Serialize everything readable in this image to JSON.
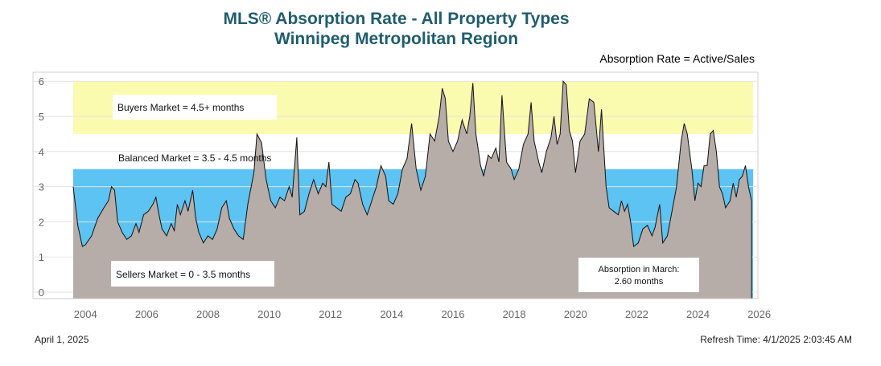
{
  "header": {
    "title_line1": "MLS® Absorption Rate - All Property Types",
    "title_line2": "Winnipeg Metropolitan Region",
    "formula": "Absorption Rate = Active/Sales"
  },
  "footer": {
    "date": "April 1, 2025",
    "refresh": "Refresh Time: 4/1/2025 2:03:45 AM"
  },
  "zones": {
    "buyers": "Buyers Market = 4.5+ months",
    "balanced": "Balanced Market = 3.5 - 4.5 months",
    "sellers": "Sellers Market = 0 - 3.5 months"
  },
  "annotation": {
    "line1": "Absorption in March:",
    "line2": "2.60 months"
  },
  "colors": {
    "title": "#1f5d6e",
    "buyers_band": "#fbfbb0",
    "sellers_band": "#5cc3f2",
    "area_fill": "#b6ada8",
    "area_stroke": "#111111"
  },
  "chart_data": {
    "type": "area",
    "title": "MLS® Absorption Rate - All Property Types",
    "xlabel": "",
    "ylabel": "",
    "xlim": [
      2003.6,
      2026.2
    ],
    "ylim": [
      0,
      6
    ],
    "x_ticks": [
      2004,
      2006,
      2008,
      2010,
      2012,
      2014,
      2016,
      2018,
      2020,
      2022,
      2024,
      2026
    ],
    "y_ticks": [
      0,
      1,
      2,
      3,
      4,
      5,
      6
    ],
    "grid": true,
    "bands": [
      {
        "name": "Sellers Market",
        "from": 0,
        "to": 3.5
      },
      {
        "name": "Balanced Market",
        "from": 3.5,
        "to": 4.5
      },
      {
        "name": "Buyers Market",
        "from": 4.5,
        "to": 6
      }
    ],
    "series": [
      {
        "name": "Absorption Rate",
        "points": [
          [
            2003.6,
            3.0
          ],
          [
            2003.75,
            1.9
          ],
          [
            2003.9,
            1.3
          ],
          [
            2004.0,
            1.35
          ],
          [
            2004.2,
            1.6
          ],
          [
            2004.4,
            2.1
          ],
          [
            2004.6,
            2.4
          ],
          [
            2004.75,
            2.6
          ],
          [
            2004.85,
            3.0
          ],
          [
            2004.95,
            2.9
          ],
          [
            2005.05,
            2.0
          ],
          [
            2005.2,
            1.7
          ],
          [
            2005.35,
            1.5
          ],
          [
            2005.5,
            1.6
          ],
          [
            2005.65,
            1.95
          ],
          [
            2005.75,
            1.7
          ],
          [
            2005.9,
            2.2
          ],
          [
            2006.05,
            2.3
          ],
          [
            2006.2,
            2.5
          ],
          [
            2006.3,
            2.7
          ],
          [
            2006.4,
            2.2
          ],
          [
            2006.5,
            1.8
          ],
          [
            2006.65,
            1.6
          ],
          [
            2006.8,
            1.95
          ],
          [
            2006.9,
            1.75
          ],
          [
            2007.0,
            2.5
          ],
          [
            2007.1,
            2.2
          ],
          [
            2007.25,
            2.6
          ],
          [
            2007.35,
            2.3
          ],
          [
            2007.5,
            2.9
          ],
          [
            2007.6,
            2.1
          ],
          [
            2007.7,
            1.7
          ],
          [
            2007.85,
            1.4
          ],
          [
            2008.0,
            1.6
          ],
          [
            2008.15,
            1.5
          ],
          [
            2008.3,
            1.8
          ],
          [
            2008.45,
            2.4
          ],
          [
            2008.6,
            2.6
          ],
          [
            2008.7,
            2.1
          ],
          [
            2008.85,
            1.8
          ],
          [
            2009.0,
            1.6
          ],
          [
            2009.15,
            1.5
          ],
          [
            2009.3,
            2.5
          ],
          [
            2009.5,
            3.4
          ],
          [
            2009.6,
            4.5
          ],
          [
            2009.75,
            4.25
          ],
          [
            2009.9,
            3.2
          ],
          [
            2010.05,
            2.6
          ],
          [
            2010.2,
            2.4
          ],
          [
            2010.35,
            2.7
          ],
          [
            2010.5,
            2.6
          ],
          [
            2010.65,
            3.0
          ],
          [
            2010.75,
            2.7
          ],
          [
            2010.9,
            4.4
          ],
          [
            2011.0,
            2.2
          ],
          [
            2011.15,
            2.3
          ],
          [
            2011.3,
            2.8
          ],
          [
            2011.45,
            3.2
          ],
          [
            2011.6,
            2.8
          ],
          [
            2011.75,
            3.1
          ],
          [
            2011.85,
            3.0
          ],
          [
            2011.95,
            3.7
          ],
          [
            2012.05,
            2.5
          ],
          [
            2012.2,
            2.4
          ],
          [
            2012.35,
            2.3
          ],
          [
            2012.5,
            2.7
          ],
          [
            2012.65,
            2.8
          ],
          [
            2012.8,
            3.2
          ],
          [
            2012.9,
            3.1
          ],
          [
            2013.05,
            2.5
          ],
          [
            2013.2,
            2.2
          ],
          [
            2013.35,
            2.6
          ],
          [
            2013.5,
            3.0
          ],
          [
            2013.65,
            3.6
          ],
          [
            2013.8,
            3.3
          ],
          [
            2013.9,
            2.6
          ],
          [
            2014.05,
            2.5
          ],
          [
            2014.2,
            2.8
          ],
          [
            2014.35,
            3.5
          ],
          [
            2014.5,
            3.8
          ],
          [
            2014.65,
            4.8
          ],
          [
            2014.8,
            3.5
          ],
          [
            2014.95,
            2.9
          ],
          [
            2015.1,
            3.3
          ],
          [
            2015.25,
            4.5
          ],
          [
            2015.4,
            4.3
          ],
          [
            2015.55,
            5.0
          ],
          [
            2015.65,
            5.8
          ],
          [
            2015.75,
            5.5
          ],
          [
            2015.85,
            4.3
          ],
          [
            2016.0,
            4.0
          ],
          [
            2016.15,
            4.3
          ],
          [
            2016.3,
            4.9
          ],
          [
            2016.45,
            4.5
          ],
          [
            2016.55,
            5.0
          ],
          [
            2016.65,
            5.95
          ],
          [
            2016.75,
            4.5
          ],
          [
            2016.9,
            3.6
          ],
          [
            2017.0,
            3.3
          ],
          [
            2017.15,
            3.9
          ],
          [
            2017.25,
            3.8
          ],
          [
            2017.4,
            4.1
          ],
          [
            2017.5,
            3.7
          ],
          [
            2017.6,
            5.6
          ],
          [
            2017.75,
            3.7
          ],
          [
            2017.9,
            3.5
          ],
          [
            2018.0,
            3.2
          ],
          [
            2018.15,
            3.5
          ],
          [
            2018.3,
            4.2
          ],
          [
            2018.45,
            4.5
          ],
          [
            2018.55,
            5.4
          ],
          [
            2018.65,
            4.3
          ],
          [
            2018.8,
            3.7
          ],
          [
            2018.9,
            3.4
          ],
          [
            2019.05,
            4.0
          ],
          [
            2019.2,
            4.4
          ],
          [
            2019.3,
            5.0
          ],
          [
            2019.4,
            4.2
          ],
          [
            2019.5,
            4.5
          ],
          [
            2019.6,
            6.0
          ],
          [
            2019.7,
            5.9
          ],
          [
            2019.8,
            4.6
          ],
          [
            2019.9,
            4.3
          ],
          [
            2020.0,
            3.4
          ],
          [
            2020.15,
            4.3
          ],
          [
            2020.3,
            4.5
          ],
          [
            2020.45,
            5.5
          ],
          [
            2020.6,
            5.4
          ],
          [
            2020.75,
            4.0
          ],
          [
            2020.85,
            5.2
          ],
          [
            2021.0,
            3.0
          ],
          [
            2021.1,
            2.4
          ],
          [
            2021.25,
            2.3
          ],
          [
            2021.4,
            2.2
          ],
          [
            2021.5,
            2.6
          ],
          [
            2021.6,
            2.3
          ],
          [
            2021.7,
            2.5
          ],
          [
            2021.8,
            2.0
          ],
          [
            2021.9,
            1.3
          ],
          [
            2022.05,
            1.4
          ],
          [
            2022.2,
            1.8
          ],
          [
            2022.35,
            1.9
          ],
          [
            2022.5,
            1.6
          ],
          [
            2022.6,
            1.85
          ],
          [
            2022.75,
            2.5
          ],
          [
            2022.85,
            1.4
          ],
          [
            2023.0,
            1.6
          ],
          [
            2023.15,
            2.3
          ],
          [
            2023.3,
            3.0
          ],
          [
            2023.45,
            4.3
          ],
          [
            2023.55,
            4.8
          ],
          [
            2023.65,
            4.5
          ],
          [
            2023.8,
            3.5
          ],
          [
            2023.9,
            2.6
          ],
          [
            2024.0,
            3.1
          ],
          [
            2024.1,
            3.0
          ],
          [
            2024.2,
            3.6
          ],
          [
            2024.3,
            3.6
          ],
          [
            2024.4,
            4.5
          ],
          [
            2024.5,
            4.6
          ],
          [
            2024.6,
            4.0
          ],
          [
            2024.7,
            3.0
          ],
          [
            2024.8,
            2.8
          ],
          [
            2024.9,
            2.4
          ],
          [
            2025.05,
            2.6
          ],
          [
            2025.15,
            3.1
          ],
          [
            2025.25,
            2.7
          ],
          [
            2025.35,
            3.2
          ],
          [
            2025.45,
            3.3
          ],
          [
            2025.55,
            3.6
          ],
          [
            2025.65,
            3.0
          ],
          [
            2025.75,
            2.6
          ]
        ]
      }
    ]
  }
}
